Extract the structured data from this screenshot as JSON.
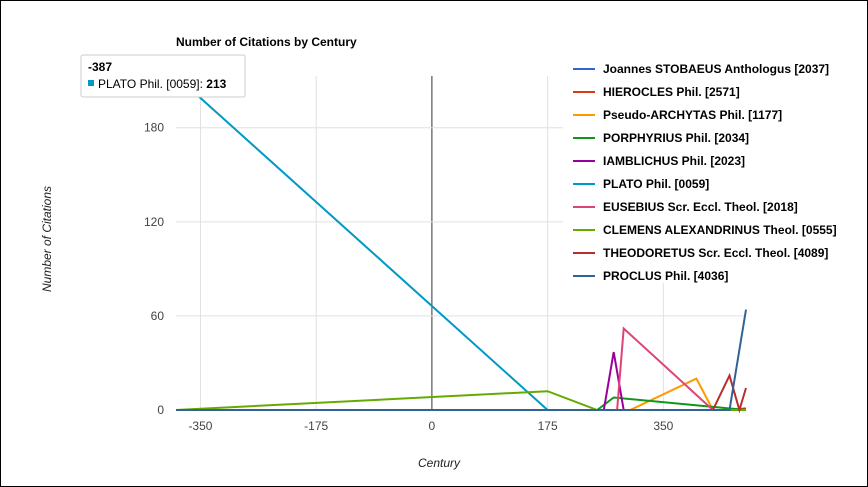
{
  "chart_data": {
    "type": "line",
    "title": "Number of Citations by Century",
    "xlabel": "Century",
    "ylabel": "Number of Citations",
    "xlim": [
      -387,
      475
    ],
    "ylim": [
      0,
      213
    ],
    "x_ticks": [
      "-350",
      "-175",
      "0",
      "175",
      "350"
    ],
    "x_tick_values": [
      -350,
      -175,
      0,
      175,
      350
    ],
    "y_ticks": [
      "0",
      "60",
      "120",
      "180"
    ],
    "y_tick_values": [
      0,
      60,
      120,
      180
    ],
    "grid": true,
    "legend_position": "right",
    "series": [
      {
        "name": "Joannes STOBAEUS Anthologus [2037]",
        "color": "#3366cc",
        "x": [
          -387,
          450,
          475
        ],
        "y": [
          0,
          0,
          0
        ]
      },
      {
        "name": "HIEROCLES Phil. [2571]",
        "color": "#dc3912",
        "x": [
          -387,
          450,
          475
        ],
        "y": [
          0,
          0,
          1
        ]
      },
      {
        "name": "Pseudo-ARCHYTAS Phil. [1177]",
        "color": "#ff9900",
        "x": [
          -387,
          300,
          400,
          425,
          475
        ],
        "y": [
          0,
          0,
          20,
          0,
          0
        ]
      },
      {
        "name": "PORPHYRIUS Phil. [2034]",
        "color": "#109618",
        "x": [
          -387,
          250,
          275,
          475
        ],
        "y": [
          0,
          0,
          8,
          0
        ]
      },
      {
        "name": "IAMBLICHUS Phil. [2023]",
        "color": "#990099",
        "x": [
          -387,
          260,
          275,
          290,
          475
        ],
        "y": [
          0,
          0,
          37,
          0,
          0
        ]
      },
      {
        "name": "PLATO Phil. [0059]",
        "color": "#0099c6",
        "x": [
          -387,
          175,
          475
        ],
        "y": [
          213,
          0,
          0
        ]
      },
      {
        "name": "EUSEBIUS Scr. Eccl. Theol. [2018]",
        "color": "#dd4477",
        "x": [
          -387,
          280,
          290,
          425,
          475
        ],
        "y": [
          0,
          0,
          52,
          0,
          0
        ]
      },
      {
        "name": "CLEMENS ALEXANDRINUS Theol. [0555]",
        "color": "#66aa00",
        "x": [
          -387,
          175,
          250,
          475
        ],
        "y": [
          0,
          12,
          0,
          0
        ]
      },
      {
        "name": "THEODORETUS Scr. Eccl. Theol. [4089]",
        "color": "#b82e2e",
        "x": [
          -387,
          425,
          450,
          465,
          475
        ],
        "y": [
          0,
          0,
          22,
          0,
          14
        ]
      },
      {
        "name": "PROCLUS Phil. [4036]",
        "color": "#316395",
        "x": [
          -387,
          450,
          475
        ],
        "y": [
          0,
          0,
          64
        ]
      }
    ],
    "tooltip": {
      "title": "-387",
      "series_label": "PLATO Phil. [0059]:",
      "value": "213",
      "color": "#0099c6"
    }
  }
}
